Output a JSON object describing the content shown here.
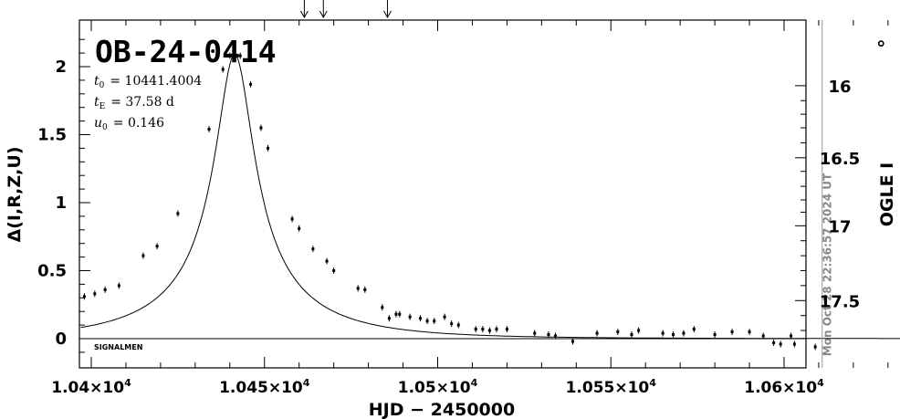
{
  "chart_data": {
    "type": "scatter",
    "title": "OB-24-0414",
    "xlabel": "HJD − 2450000",
    "ylabel": "Δ(I,R,Z,U)",
    "y2label": "OGLE I",
    "xlim": [
      10397,
      10635
    ],
    "ylim": [
      -0.2,
      2.3
    ],
    "x_ticks": [
      {
        "value": 10400,
        "label_mant": "1.04",
        "label_exp": "4"
      },
      {
        "value": 10450,
        "label_mant": "1.045",
        "label_exp": "4"
      },
      {
        "value": 10500,
        "label_mant": "1.05",
        "label_exp": "4"
      },
      {
        "value": 10550,
        "label_mant": "1.055",
        "label_exp": "4"
      },
      {
        "value": 10600,
        "label_mant": "1.06",
        "label_exp": "4"
      }
    ],
    "y_ticks": [
      {
        "value": 0,
        "label": "0"
      },
      {
        "value": 0.5,
        "label": "0.5"
      },
      {
        "value": 1,
        "label": "1"
      },
      {
        "value": 1.5,
        "label": "1.5"
      },
      {
        "value": 2,
        "label": "2"
      }
    ],
    "y2_ticks": [
      {
        "value": 1.86,
        "label": "16"
      },
      {
        "value": 1.33,
        "label": "16.5"
      },
      {
        "value": 0.83,
        "label": "17"
      },
      {
        "value": 0.28,
        "label": "17.5"
      }
    ],
    "params": {
      "t0_sym": "t",
      "t0_sub": "0",
      "t0_val": "= 10441.4004",
      "tE_sym": "t",
      "tE_sub": "E",
      "tE_val": "= 37.58  d",
      "u0_sym": "u",
      "u0_sub": "0",
      "u0_val": "= 0.146"
    },
    "signalmen_label": "SIGNALMEN",
    "date_label": "Mon Oct 28 22:36:57 2024 UT",
    "date_line_x": 10611,
    "circle_marker": {
      "x": 10628,
      "y": 2.17
    },
    "arrows_x": [
      10461.5,
      10467,
      10485.5
    ],
    "model": {
      "t0": 10441.4004,
      "tE": 37.58,
      "u0": 0.146,
      "peak": 2.09
    },
    "points": [
      [
        10398,
        0.31
      ],
      [
        10401,
        0.33
      ],
      [
        10404,
        0.36
      ],
      [
        10408,
        0.39
      ],
      [
        10415,
        0.61
      ],
      [
        10419,
        0.68
      ],
      [
        10425,
        0.92
      ],
      [
        10434,
        1.54
      ],
      [
        10438,
        1.98
      ],
      [
        10440,
        2.08
      ],
      [
        10443,
        2.08
      ],
      [
        10446,
        1.87
      ],
      [
        10449,
        1.55
      ],
      [
        10451,
        1.4
      ],
      [
        10458,
        0.88
      ],
      [
        10460,
        0.81
      ],
      [
        10464,
        0.66
      ],
      [
        10468,
        0.57
      ],
      [
        10470,
        0.5
      ],
      [
        10477,
        0.37
      ],
      [
        10479,
        0.36
      ],
      [
        10484,
        0.23
      ],
      [
        10486,
        0.15
      ],
      [
        10488,
        0.18
      ],
      [
        10489,
        0.18
      ],
      [
        10492,
        0.16
      ],
      [
        10495,
        0.15
      ],
      [
        10497,
        0.13
      ],
      [
        10499,
        0.13
      ],
      [
        10502,
        0.16
      ],
      [
        10504,
        0.11
      ],
      [
        10506,
        0.1
      ],
      [
        10511,
        0.07
      ],
      [
        10513,
        0.07
      ],
      [
        10515,
        0.06
      ],
      [
        10517,
        0.07
      ],
      [
        10520,
        0.07
      ],
      [
        10528,
        0.04
      ],
      [
        10532,
        0.03
      ],
      [
        10534,
        0.02
      ],
      [
        10539,
        -0.02
      ],
      [
        10546,
        0.04
      ],
      [
        10552,
        0.05
      ],
      [
        10556,
        0.03
      ],
      [
        10558,
        0.06
      ],
      [
        10565,
        0.04
      ],
      [
        10568,
        0.03
      ],
      [
        10571,
        0.04
      ],
      [
        10574,
        0.07
      ],
      [
        10580,
        0.03
      ],
      [
        10585,
        0.05
      ],
      [
        10590,
        0.05
      ],
      [
        10594,
        0.02
      ],
      [
        10597,
        -0.03
      ],
      [
        10599,
        -0.04
      ],
      [
        10602,
        0.02
      ],
      [
        10603,
        -0.04
      ],
      [
        10609,
        -0.06
      ]
    ]
  }
}
